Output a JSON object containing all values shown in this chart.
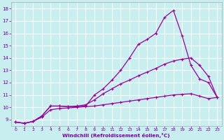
{
  "bg_color": "#c8eef0",
  "grid_color": "#ffffff",
  "line_color": "#990099",
  "xlabel": "Windchill (Refroidissement éolien,°C)",
  "xlabel_color": "#7700aa",
  "tick_color": "#7700aa",
  "xlim": [
    -0.5,
    23.5
  ],
  "ylim": [
    8.5,
    18.5
  ],
  "xticks": [
    0,
    1,
    2,
    3,
    4,
    5,
    6,
    7,
    8,
    9,
    10,
    11,
    12,
    13,
    14,
    15,
    16,
    17,
    18,
    19,
    20,
    21,
    22,
    23
  ],
  "yticks": [
    9,
    10,
    11,
    12,
    13,
    14,
    15,
    16,
    17,
    18
  ],
  "line1_x": [
    0,
    1,
    2,
    3,
    4,
    5,
    6,
    7,
    8,
    9,
    10,
    11,
    12,
    13,
    14,
    15,
    16,
    17,
    18,
    19,
    20,
    21,
    22,
    23
  ],
  "line1_y": [
    8.8,
    8.7,
    8.85,
    9.3,
    10.1,
    10.1,
    10.05,
    10.05,
    10.1,
    11.0,
    11.5,
    12.2,
    13.0,
    14.0,
    15.1,
    15.5,
    16.0,
    17.3,
    17.85,
    15.8,
    13.4,
    12.3,
    12.0,
    10.8
  ],
  "line2_x": [
    0,
    1,
    2,
    3,
    4,
    5,
    6,
    7,
    8,
    9,
    10,
    11,
    12,
    13,
    14,
    15,
    16,
    17,
    18,
    19,
    20,
    21,
    22,
    23
  ],
  "line2_y": [
    8.8,
    8.7,
    8.85,
    9.3,
    10.1,
    10.1,
    10.05,
    10.1,
    10.2,
    10.6,
    11.1,
    11.5,
    11.9,
    12.2,
    12.55,
    12.85,
    13.15,
    13.5,
    13.75,
    13.9,
    14.0,
    13.4,
    12.5,
    10.8
  ],
  "line3_x": [
    0,
    1,
    2,
    3,
    4,
    5,
    6,
    7,
    8,
    9,
    10,
    11,
    12,
    13,
    14,
    15,
    16,
    17,
    18,
    19,
    20,
    21,
    22,
    23
  ],
  "line3_y": [
    8.8,
    8.7,
    8.85,
    9.2,
    9.8,
    9.9,
    9.95,
    10.0,
    10.05,
    10.1,
    10.2,
    10.3,
    10.4,
    10.5,
    10.6,
    10.7,
    10.8,
    10.9,
    11.0,
    11.05,
    11.1,
    10.9,
    10.7,
    10.8
  ]
}
